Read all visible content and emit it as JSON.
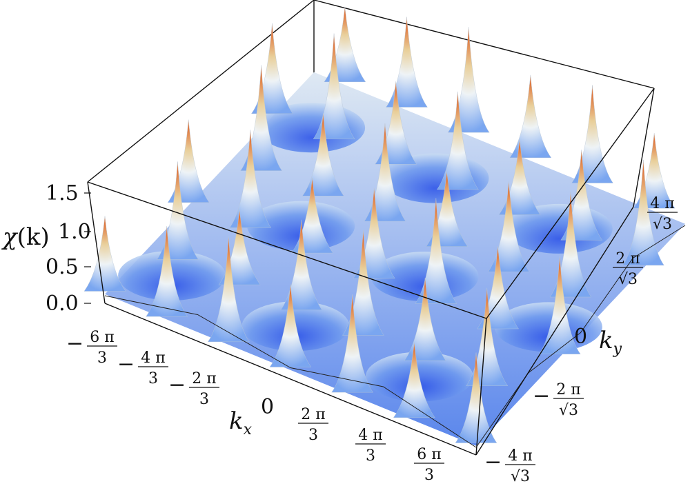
{
  "chart_data": {
    "type": "surface3d",
    "zlabel_main": "χ",
    "zlabel_arg": "(k)",
    "xlabel_main": "k",
    "xlabel_sub": "x",
    "ylabel_main": "k",
    "ylabel_sub": "y",
    "zlim": [
      0,
      1.6
    ],
    "z_ticks": [
      "1.5",
      "1.0",
      "0.5",
      "0.0"
    ],
    "x_ticks": [
      {
        "sign": "−",
        "num": "6 π",
        "den": "3"
      },
      {
        "sign": "−",
        "num": "4 π",
        "den": "3"
      },
      {
        "sign": "−",
        "num": "2 π",
        "den": "3"
      },
      {
        "sign": "",
        "num": "0",
        "den": ""
      },
      {
        "sign": "",
        "num": "2 π",
        "den": "3"
      },
      {
        "sign": "",
        "num": "4 π",
        "den": "3"
      },
      {
        "sign": "",
        "num": "6 π",
        "den": "3"
      }
    ],
    "y_ticks": [
      {
        "sign": "−",
        "num": "4 π",
        "den": "√3"
      },
      {
        "sign": "−",
        "num": "2 π",
        "den": "√3"
      },
      {
        "sign": "",
        "num": "0",
        "den": ""
      },
      {
        "sign": "",
        "num": "2 π",
        "den": "√3"
      },
      {
        "sign": "",
        "num": "4 π",
        "den": "√3"
      }
    ],
    "colormap": [
      "#2f55e8",
      "#7aa6f0",
      "#eef3f6",
      "#e9cf9a",
      "#e0743a"
    ],
    "grid": false
  }
}
